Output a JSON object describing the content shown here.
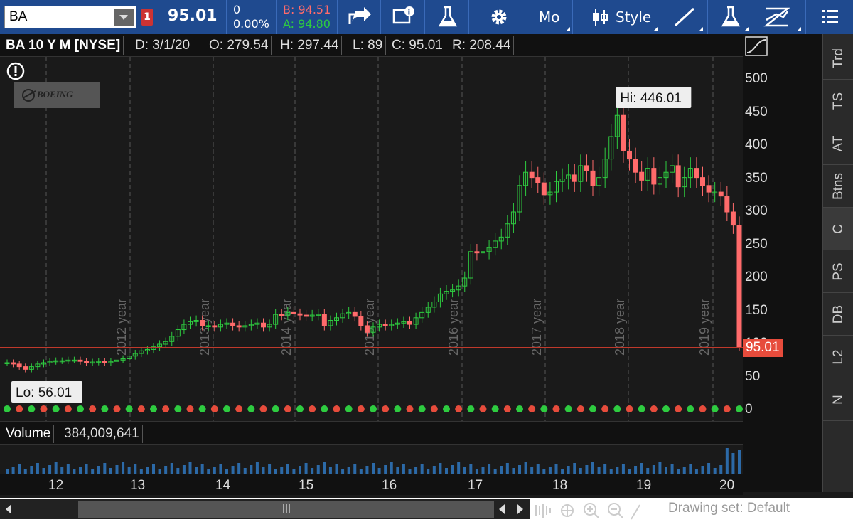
{
  "toolbar": {
    "symbol": "BA",
    "alert_count": "1",
    "last_price": "95.01",
    "net_change": "0",
    "pct_change": "0.00%",
    "bid": "B: 94.51",
    "ask": "A: 94.80",
    "period_label": "Mo",
    "style_label": "Style",
    "icons": [
      "share-icon",
      "info-chart-icon",
      "flask-icon",
      "gear-icon",
      "candlestick-icon",
      "drawing-line-icon",
      "flask-icon",
      "pattern-icon",
      "menu-icon"
    ]
  },
  "header": {
    "title": "BA 10 Y M [NYSE]",
    "date": "D: 3/1/20",
    "open": "O: 279.54",
    "high": "H: 297.44",
    "low": "L: 89",
    "close": "C: 95.01",
    "range": "R: 208.44"
  },
  "chart": {
    "logo_text": "BOEING",
    "hi_label": "Hi: 446.01",
    "lo_label": "Lo: 56.01",
    "current_price_label": "95.01",
    "year_markers": [
      "2012 year",
      "2013 year",
      "2014 year",
      "2015 year",
      "2016 year",
      "2017 year",
      "2018 year",
      "2019 year"
    ],
    "colors": {
      "up": "#2ecc40",
      "down": "#ff6b6b",
      "grid": "#555",
      "price_line": "#c0392b"
    }
  },
  "chart_data": {
    "type": "candlestick",
    "title": "BA 10 Y M [NYSE]",
    "ylim": [
      0,
      520
    ],
    "y_ticks": [
      50,
      100,
      150,
      200,
      250,
      300,
      350,
      400,
      450,
      500
    ],
    "x_ticks": [
      "12",
      "13",
      "14",
      "15",
      "16",
      "17",
      "18",
      "19",
      "20"
    ],
    "closes": [
      72,
      70,
      66,
      62,
      66,
      70,
      72,
      74,
      75,
      75,
      76,
      76,
      74,
      72,
      73,
      74,
      72,
      74,
      76,
      78,
      82,
      86,
      90,
      92,
      96,
      100,
      104,
      112,
      122,
      130,
      134,
      136,
      128,
      128,
      126,
      130,
      132,
      128,
      126,
      128,
      130,
      132,
      126,
      130,
      145,
      144,
      148,
      146,
      144,
      142,
      144,
      145,
      128,
      136,
      140,
      146,
      148,
      142,
      128,
      118,
      126,
      130,
      128,
      130,
      132,
      134,
      130,
      140,
      148,
      156,
      164,
      176,
      180,
      182,
      188,
      200,
      240,
      238,
      240,
      246,
      256,
      262,
      282,
      300,
      340,
      360,
      352,
      344,
      326,
      330,
      346,
      350,
      356,
      346,
      370,
      362,
      340,
      352,
      380,
      414,
      446,
      392,
      380,
      360,
      348,
      366,
      342,
      352,
      360,
      370,
      338,
      352,
      366,
      352,
      340,
      330,
      330,
      324,
      300,
      280,
      95
    ],
    "volume_label": "Volume",
    "volume_value": "384,009,641"
  },
  "price_axis": {
    "ticks": [
      "500",
      "450",
      "400",
      "350",
      "300",
      "250",
      "200",
      "150",
      "100",
      "50",
      "0"
    ],
    "current": "95.01"
  },
  "x_axis": {
    "ticks": [
      "12",
      "13",
      "14",
      "15",
      "16",
      "17",
      "18",
      "19",
      "20"
    ]
  },
  "right_tabs": [
    "Trd",
    "TS",
    "AT",
    "Btns",
    "C",
    "PS",
    "DB",
    "L2",
    "N"
  ],
  "status": {
    "drawing_set": "Drawing set: Default"
  }
}
